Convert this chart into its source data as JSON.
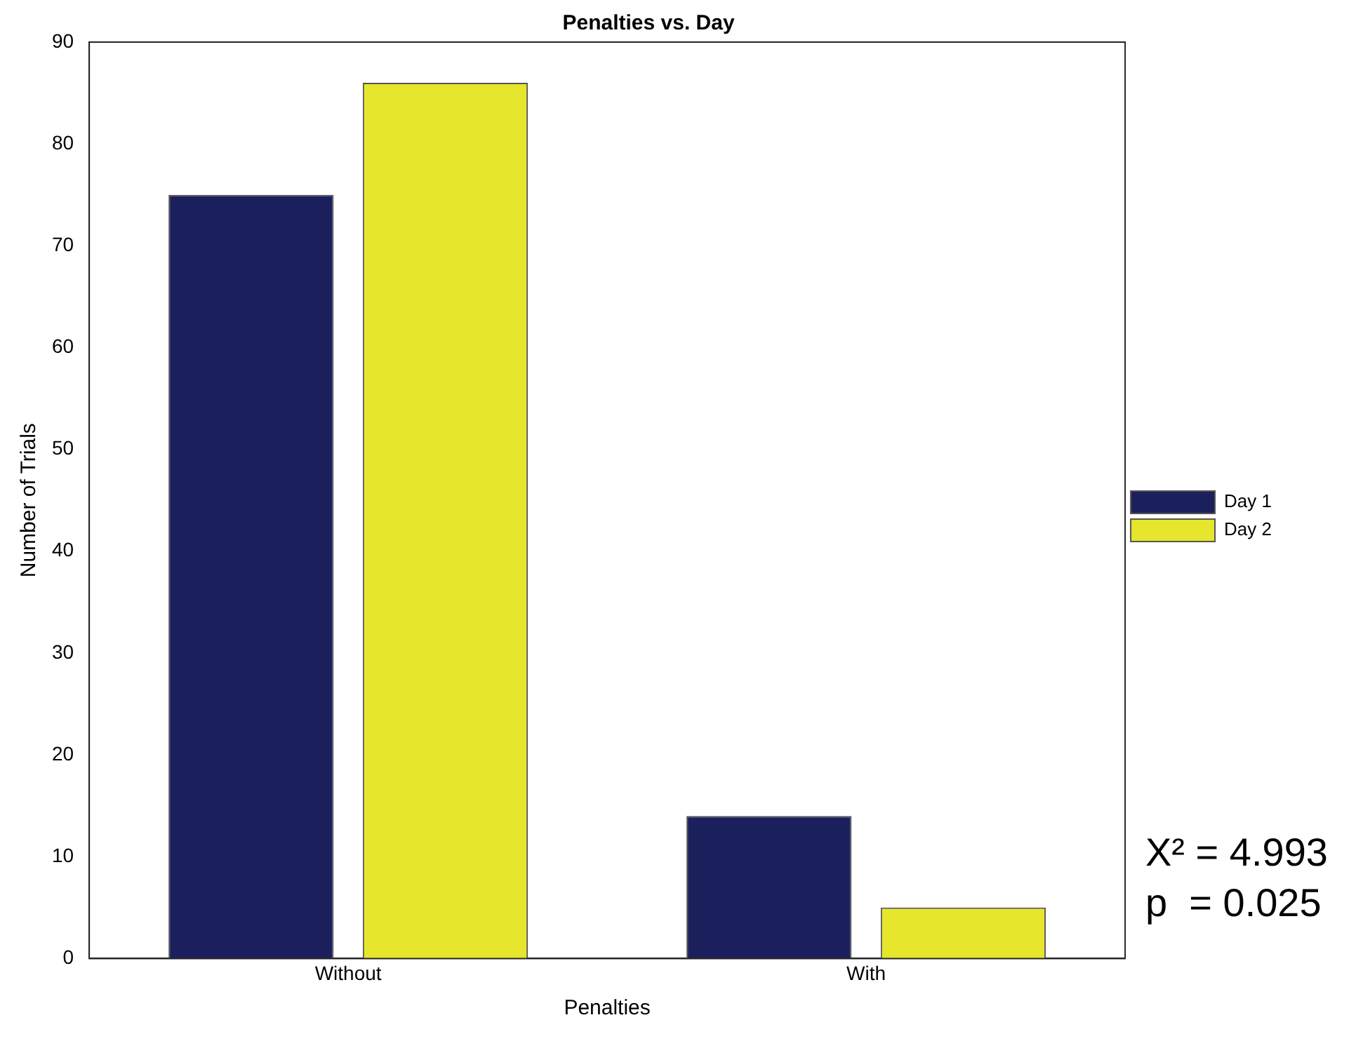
{
  "chart_data": {
    "type": "bar",
    "title": "Penalties vs. Day",
    "xlabel": "Penalties",
    "ylabel": "Number of Trials",
    "categories": [
      "Without",
      "With"
    ],
    "series": [
      {
        "name": "Day 1",
        "color": "#1b1f5c",
        "values": [
          75,
          14
        ]
      },
      {
        "name": "Day 2",
        "color": "#e6e62c",
        "values": [
          86,
          5
        ]
      }
    ],
    "ylim": [
      0,
      90
    ],
    "yticks": [
      0,
      10,
      20,
      30,
      40,
      50,
      60,
      70,
      80,
      90
    ],
    "grid": false,
    "legend": "right",
    "annotations": [
      "X² = 4.993",
      "p  = 0.025"
    ]
  }
}
